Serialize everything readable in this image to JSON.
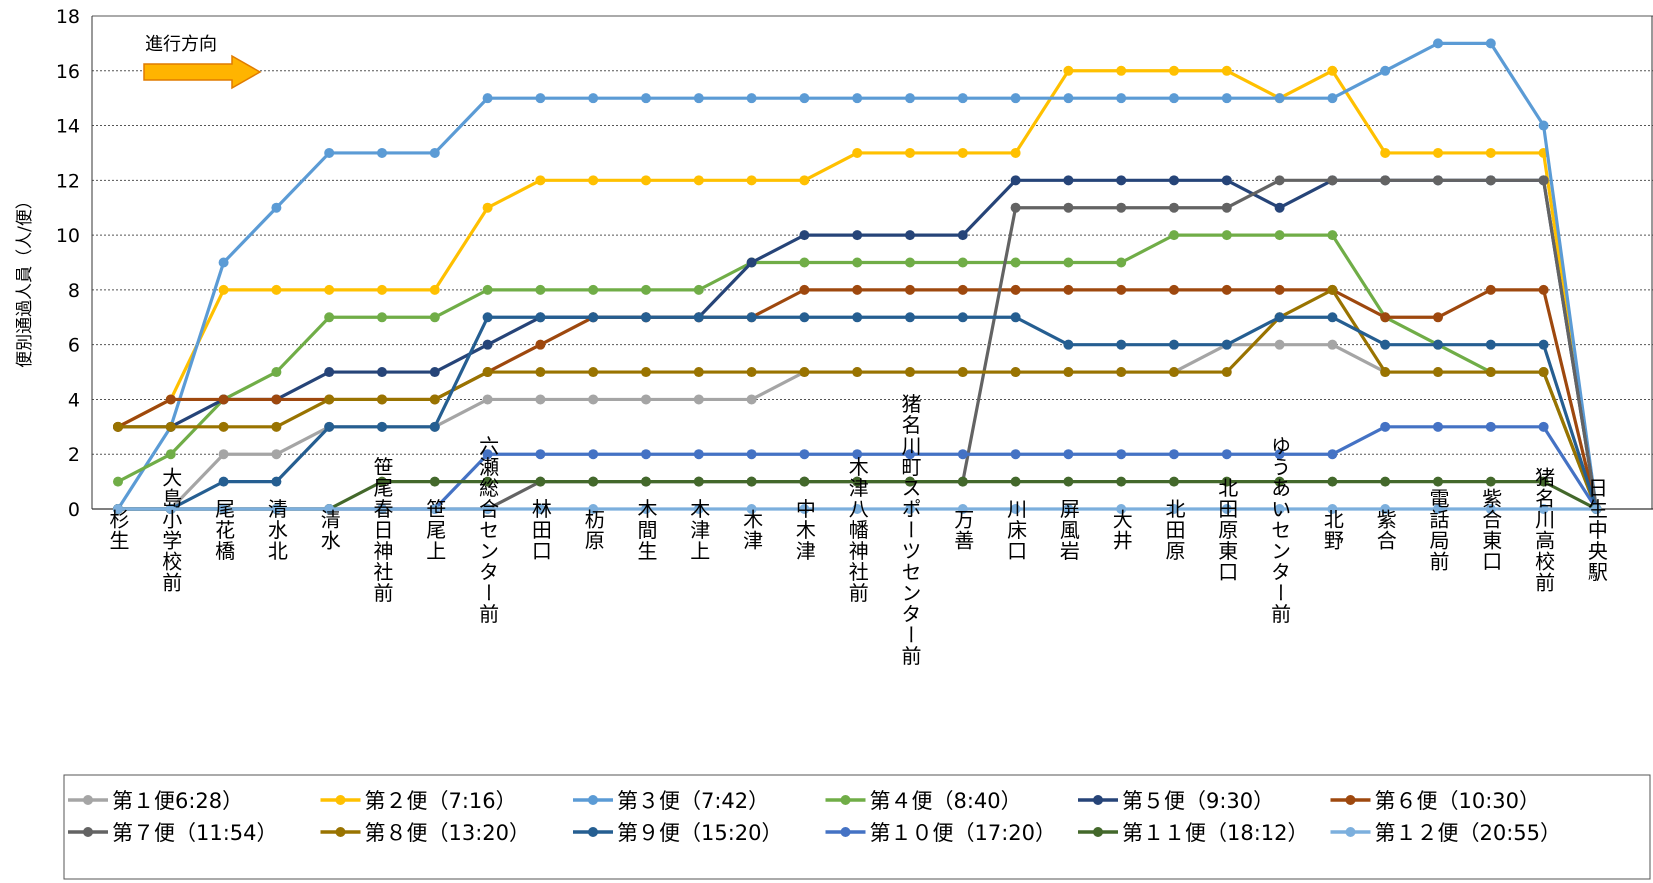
{
  "chart_data": {
    "type": "line",
    "ylabel": "便別通過人員（人/便）",
    "ylim": [
      0,
      18
    ],
    "yticks": [
      0,
      2,
      4,
      6,
      8,
      10,
      12,
      14,
      16,
      18
    ],
    "grid": true,
    "legend_position": "bottom",
    "annotation": "進行方向",
    "categories": [
      "杉生",
      "大島小学校前",
      "尾花橋",
      "清水北",
      "清水",
      "笹尾春日神社前",
      "笹尾上",
      "六瀬総合センター前",
      "林田口",
      "杤原",
      "木間生",
      "木津上",
      "木津",
      "中木津",
      "木津八幡神社前",
      "猪名川町スポーツセンター前",
      "万善",
      "川床口",
      "屏風岩",
      "大井",
      "北田原",
      "北田原東口",
      "ゆうあいセンター前",
      "北野",
      "紫合",
      "電話局前",
      "紫合東口",
      "猪名川高校前",
      "日生中央駅"
    ],
    "series": [
      {
        "name": "第１便6:28）",
        "color": "#a5a5a5",
        "values": [
          0,
          0,
          2,
          2,
          3,
          3,
          3,
          4,
          4,
          4,
          4,
          4,
          4,
          5,
          5,
          5,
          5,
          5,
          5,
          5,
          5,
          6,
          6,
          6,
          5,
          5,
          5,
          5,
          0
        ]
      },
      {
        "name": "第２便（7:16）",
        "color": "#ffc000",
        "values": [
          3,
          4,
          8,
          8,
          8,
          8,
          8,
          11,
          12,
          12,
          12,
          12,
          12,
          12,
          13,
          13,
          13,
          13,
          16,
          16,
          16,
          16,
          15,
          16,
          13,
          13,
          13,
          13,
          0
        ]
      },
      {
        "name": "第３便（7:42）",
        "color": "#5b9bd5",
        "values": [
          0,
          3,
          9,
          11,
          13,
          13,
          13,
          15,
          15,
          15,
          15,
          15,
          15,
          15,
          15,
          15,
          15,
          15,
          15,
          15,
          15,
          15,
          15,
          15,
          16,
          17,
          17,
          14,
          0
        ]
      },
      {
        "name": "第４便（8:40）",
        "color": "#70ad47",
        "values": [
          1,
          2,
          4,
          5,
          7,
          7,
          7,
          8,
          8,
          8,
          8,
          8,
          9,
          9,
          9,
          9,
          9,
          9,
          9,
          9,
          10,
          10,
          10,
          10,
          7,
          6,
          5,
          5,
          0
        ]
      },
      {
        "name": "第５便（9:30）",
        "color": "#264478",
        "values": [
          3,
          3,
          4,
          4,
          5,
          5,
          5,
          6,
          7,
          7,
          7,
          7,
          9,
          10,
          10,
          10,
          10,
          12,
          12,
          12,
          12,
          12,
          11,
          12,
          12,
          12,
          12,
          12,
          0
        ]
      },
      {
        "name": "第６便（10:30）",
        "color": "#9e480e",
        "values": [
          3,
          4,
          4,
          4,
          4,
          4,
          4,
          5,
          6,
          7,
          7,
          7,
          7,
          8,
          8,
          8,
          8,
          8,
          8,
          8,
          8,
          8,
          8,
          8,
          7,
          7,
          8,
          8,
          0
        ]
      },
      {
        "name": "第７便（11:54）",
        "color": "#636363",
        "values": [
          0,
          0,
          0,
          0,
          0,
          0,
          0,
          0,
          1,
          1,
          1,
          1,
          1,
          1,
          1,
          1,
          1,
          11,
          11,
          11,
          11,
          11,
          12,
          12,
          12,
          12,
          12,
          12,
          0
        ]
      },
      {
        "name": "第８便（13:20）",
        "color": "#997300",
        "values": [
          3,
          3,
          3,
          3,
          4,
          4,
          4,
          5,
          5,
          5,
          5,
          5,
          5,
          5,
          5,
          5,
          5,
          5,
          5,
          5,
          5,
          5,
          7,
          8,
          5,
          5,
          5,
          5,
          0
        ]
      },
      {
        "name": "第９便（15:20）",
        "color": "#255e91",
        "values": [
          0,
          0,
          1,
          1,
          3,
          3,
          3,
          7,
          7,
          7,
          7,
          7,
          7,
          7,
          7,
          7,
          7,
          7,
          6,
          6,
          6,
          6,
          7,
          7,
          6,
          6,
          6,
          6,
          0
        ]
      },
      {
        "name": "第１０便（17:20）",
        "color": "#4472c4",
        "values": [
          0,
          0,
          0,
          0,
          0,
          0,
          0,
          2,
          2,
          2,
          2,
          2,
          2,
          2,
          2,
          2,
          2,
          2,
          2,
          2,
          2,
          2,
          2,
          2,
          3,
          3,
          3,
          3,
          0
        ]
      },
      {
        "name": "第１１便（18:12）",
        "color": "#43682b",
        "values": [
          0,
          0,
          0,
          0,
          0,
          1,
          1,
          1,
          1,
          1,
          1,
          1,
          1,
          1,
          1,
          1,
          1,
          1,
          1,
          1,
          1,
          1,
          1,
          1,
          1,
          1,
          1,
          1,
          0
        ]
      },
      {
        "name": "第１２便（20:55）",
        "color": "#7cafdd",
        "values": [
          0,
          0,
          0,
          0,
          0,
          0,
          0,
          0,
          0,
          0,
          0,
          0,
          0,
          0,
          0,
          0,
          0,
          0,
          0,
          0,
          0,
          0,
          0,
          0,
          0,
          0,
          0,
          0,
          0
        ]
      }
    ]
  }
}
